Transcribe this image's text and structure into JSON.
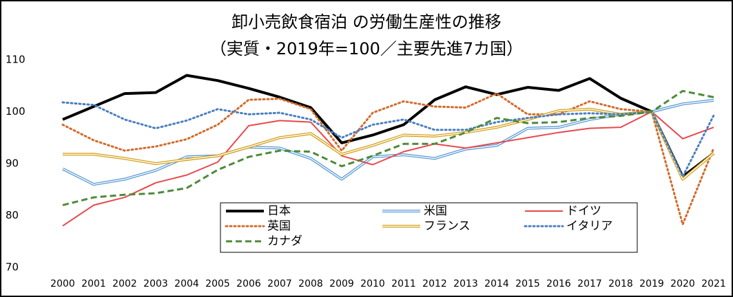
{
  "chart_data": {
    "type": "line",
    "title": "卸小売飲食宿泊 の労働生産性の推移",
    "subtitle": "（実質・2019年=100／主要先進7カ国）",
    "categories": [
      "2000",
      "2001",
      "2002",
      "2003",
      "2004",
      "2005",
      "2006",
      "2007",
      "2008",
      "2009",
      "2010",
      "2011",
      "2012",
      "2013",
      "2014",
      "2015",
      "2016",
      "2017",
      "2018",
      "2019",
      "2020",
      "2021"
    ],
    "ylim": [
      70,
      110
    ],
    "yticks": [
      70,
      80,
      90,
      100,
      110
    ],
    "grid": false,
    "series": [
      {
        "name": "日本",
        "color": "#000000",
        "line_style": "thick",
        "values": [
          98.5,
          101,
          103.5,
          103.7,
          107,
          106,
          104.5,
          102.8,
          100.8,
          94,
          95.5,
          97.5,
          102.3,
          104.8,
          103.3,
          104.7,
          104.1,
          106.4,
          102.6,
          100,
          87.5,
          92
        ]
      },
      {
        "name": "米国",
        "color": "#5b9bd5",
        "line_style": "double",
        "values": [
          89,
          86,
          87,
          88.7,
          91.3,
          91.5,
          93.2,
          93,
          91,
          87,
          91.3,
          91.7,
          91,
          92.8,
          93.5,
          96.8,
          97,
          98.5,
          99.5,
          100,
          101.5,
          102.2
        ]
      },
      {
        "name": "ドイツ",
        "color": "#e8474b",
        "line_style": "solid",
        "values": [
          78,
          82,
          83.5,
          86.3,
          87.8,
          90.3,
          97.3,
          98.3,
          98,
          91.5,
          89.8,
          92.3,
          93.8,
          93,
          94,
          95,
          96,
          96.8,
          97,
          100,
          94.8,
          97
        ]
      },
      {
        "name": "英国",
        "color": "#d26b2a",
        "line_style": "dotted",
        "values": [
          97.5,
          94.5,
          92.5,
          93.3,
          94.7,
          97.5,
          102.3,
          102.5,
          100.5,
          92.5,
          99.8,
          102,
          101,
          100.8,
          103.5,
          99.5,
          99.5,
          102,
          100.5,
          100,
          78.3,
          93
        ]
      },
      {
        "name": "フランス",
        "color": "#d4a017",
        "line_style": "double",
        "values": [
          91.8,
          91.8,
          91,
          90,
          90.8,
          91.5,
          93.2,
          95,
          95.8,
          91.8,
          93.5,
          95.5,
          95.3,
          96,
          97,
          98.5,
          100.2,
          100.5,
          99.5,
          100,
          87,
          92
        ]
      },
      {
        "name": "イタリア",
        "color": "#4a7fc1",
        "line_style": "dotted",
        "values": [
          101.8,
          101.3,
          98.5,
          96.8,
          98.3,
          100.5,
          99.5,
          99.8,
          98.5,
          95,
          97.5,
          98.5,
          96.5,
          96.5,
          98,
          98.8,
          99.5,
          99.7,
          99.5,
          100,
          87.5,
          99.3
        ]
      },
      {
        "name": "カナダ",
        "color": "#4e8a3a",
        "line_style": "dashed",
        "values": [
          82,
          83.5,
          84,
          84.3,
          85.3,
          88.8,
          91.3,
          92.5,
          92.3,
          89.5,
          91.5,
          93.8,
          93.8,
          96,
          98.8,
          97.8,
          98,
          98.8,
          99.2,
          100,
          104,
          102.8
        ]
      }
    ]
  }
}
